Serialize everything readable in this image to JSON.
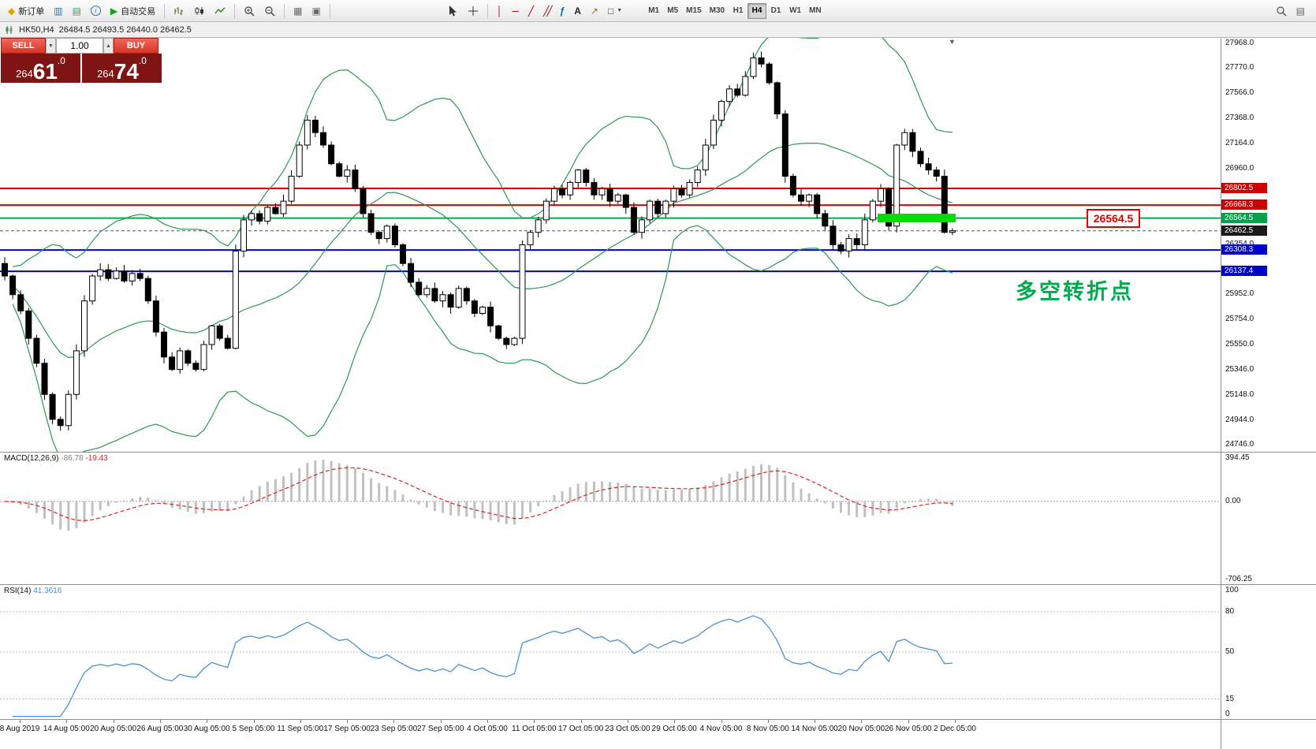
{
  "toolbar": {
    "new_order_label": "新订单",
    "autotrading_label": "自动交易",
    "timeframes": [
      "M1",
      "M5",
      "M15",
      "M30",
      "H1",
      "H4",
      "D1",
      "W1",
      "MN"
    ],
    "active_timeframe": "H4"
  },
  "chart_header": {
    "symbol": "HK50,H4",
    "ohlc": "26484.5 26493.5 26440.0 26462.5"
  },
  "trade_panel": {
    "sell_label": "SELL",
    "buy_label": "BUY",
    "volume": "1.00",
    "sell_price": {
      "prefix": "264",
      "big": "61",
      "suffix": ".0",
      "full": "26461.0"
    },
    "buy_price": {
      "prefix": "264",
      "big": "74",
      "suffix": ".0",
      "full": "26474.0"
    }
  },
  "annotation": {
    "text": "多空转折点",
    "color": "#00a94f"
  },
  "price_label_box": {
    "text": "26564.5",
    "color": "#e00000"
  },
  "colors": {
    "bull_candle": "#ffffff",
    "bear_candle": "#000000",
    "bollinger": "#2c9655",
    "resistance": "#dd0000",
    "support": "#0000dd",
    "pivot": "#00b050",
    "highlight": "#00dd00",
    "trade_button_red": "#d93425",
    "trade_panel_maroon": "#7e1414"
  },
  "chart_data": [
    {
      "type": "candlestick",
      "symbol": "HK50",
      "timeframe": "H4",
      "ohlc_display": {
        "open": 26484.5,
        "high": 26493.5,
        "low": 26440.0,
        "close": 26462.5
      },
      "bid": 26461.0,
      "ask": 26474.0,
      "ylim": [
        24690,
        28010
      ],
      "y_ticks": [
        {
          "label": "27968.0",
          "value": 27968.0
        },
        {
          "label": "27770.0",
          "value": 27770.0
        },
        {
          "label": "27566.0",
          "value": 27566.0
        },
        {
          "label": "27368.0",
          "value": 27368.0
        },
        {
          "label": "27164.0",
          "value": 27164.0
        },
        {
          "label": "26960.0",
          "value": 26960.0
        },
        {
          "label": "26354.0",
          "value": 26354.0
        },
        {
          "label": "25952.0",
          "value": 25952.0
        },
        {
          "label": "25754.0",
          "value": 25754.0
        },
        {
          "label": "25550.0",
          "value": 25550.0
        },
        {
          "label": "25346.0",
          "value": 25346.0
        },
        {
          "label": "25148.0",
          "value": 25148.0
        },
        {
          "label": "24944.0",
          "value": 24944.0
        },
        {
          "label": "24746.0",
          "value": 24746.0
        }
      ],
      "x_axis_labels": [
        "8 Aug 2019",
        "14 Aug 05:00",
        "20 Aug 05:00",
        "26 Aug 05:00",
        "30 Aug 05:00",
        "5 Sep 05:00",
        "11 Sep 05:00",
        "17 Sep 05:00",
        "23 Sep 05:00",
        "27 Sep 05:00",
        "4 Oct 05:00",
        "11 Oct 05:00",
        "17 Oct 05:00",
        "23 Oct 05:00",
        "29 Oct 05:00",
        "4 Nov 05:00",
        "8 Nov 05:00",
        "14 Nov 05:00",
        "20 Nov 05:00",
        "26 Nov 05:00",
        "2 Dec 05:00"
      ],
      "first_open": 26200,
      "closes": [
        26100,
        25950,
        25820,
        25600,
        25400,
        25150,
        24950,
        24900,
        25150,
        25500,
        25900,
        26100,
        26150,
        26080,
        26140,
        26060,
        26120,
        26080,
        25900,
        25650,
        25450,
        25350,
        25500,
        25400,
        25350,
        25550,
        25700,
        25600,
        25520,
        26300,
        26550,
        26600,
        26540,
        26650,
        26600,
        26700,
        26900,
        27150,
        27350,
        27250,
        27150,
        27000,
        26900,
        26950,
        26800,
        26600,
        26450,
        26400,
        26500,
        26350,
        26200,
        26050,
        25950,
        26000,
        25900,
        25950,
        25850,
        26000,
        25900,
        25800,
        25850,
        25700,
        25600,
        25550,
        25600,
        26350,
        26450,
        26550,
        26700,
        26800,
        26750,
        26850,
        26950,
        26850,
        26750,
        26800,
        26700,
        26750,
        26650,
        26450,
        26550,
        26700,
        26600,
        26700,
        26800,
        26750,
        26850,
        26950,
        27150,
        27350,
        27500,
        27600,
        27550,
        27700,
        27850,
        27800,
        27650,
        27400,
        26900,
        26750,
        26700,
        26750,
        26600,
        26500,
        26350,
        26300,
        26400,
        26350,
        26550,
        26700,
        26800,
        26500,
        27150,
        27250,
        27100,
        27000,
        26950,
        26900,
        26450,
        26462.5
      ],
      "hlines": [
        {
          "name": "resistance-line-1",
          "value": 26802.5,
          "label": "26802.5",
          "color": "#dd0000",
          "tag_bg": "#cc0000"
        },
        {
          "name": "resistance-line-2",
          "value": 26668.3,
          "label": "26668.3",
          "color": "#dd0000",
          "tag_bg": "#cc0000"
        },
        {
          "name": "pivot-line",
          "value": 26564.5,
          "label": "26564.5",
          "color": "#00b050",
          "tag_bg": "#00a14b"
        },
        {
          "name": "current-price-line",
          "value": 26462.5,
          "label": "26462.5",
          "color": "#555555",
          "tag_bg": "#1a1a1a",
          "dashed": true
        },
        {
          "name": "support-line-1",
          "value": 26308.3,
          "label": "26308.3",
          "color": "#0000dd",
          "tag_bg": "#0000cc"
        },
        {
          "name": "support-line-2",
          "value": 26137.4,
          "label": "26137.4",
          "color": "#0000dd",
          "tag_bg": "#0000cc"
        }
      ],
      "highlight_zone": {
        "price": 26564.5,
        "x_from": 1113,
        "x_to": 1212,
        "thickness": 11,
        "color": "#00dd00"
      },
      "indicators": {
        "bollinger": {
          "period": 20,
          "deviation": 2,
          "color": "#2c9655"
        }
      }
    },
    {
      "type": "macd",
      "name": "MACD(12,26,9)",
      "value_main": "-86.78",
      "value_signal": "-19.43",
      "params": [
        12,
        26,
        9
      ],
      "ylim": [
        -706.25,
        394.45
      ],
      "y_ticks": [
        {
          "label": "394.45",
          "value": 394.45
        },
        {
          "label": "0.00",
          "value": 0
        },
        {
          "label": "-706.25",
          "value": -706.25
        }
      ],
      "histogram_color": "#c0c0c0",
      "signal_color": "#e02020"
    },
    {
      "type": "rsi",
      "name": "RSI(14)",
      "value": "41.3616",
      "period": 14,
      "ylim": [
        0,
        100
      ],
      "levels": [
        80,
        50,
        15
      ],
      "y_ticks": [
        {
          "label": "100",
          "value": 100
        },
        {
          "label": "80",
          "value": 80
        },
        {
          "label": "50",
          "value": 50
        },
        {
          "label": "15",
          "value": 15
        },
        {
          "label": "0",
          "value": 0
        }
      ],
      "line_color": "#4a90d2"
    }
  ]
}
